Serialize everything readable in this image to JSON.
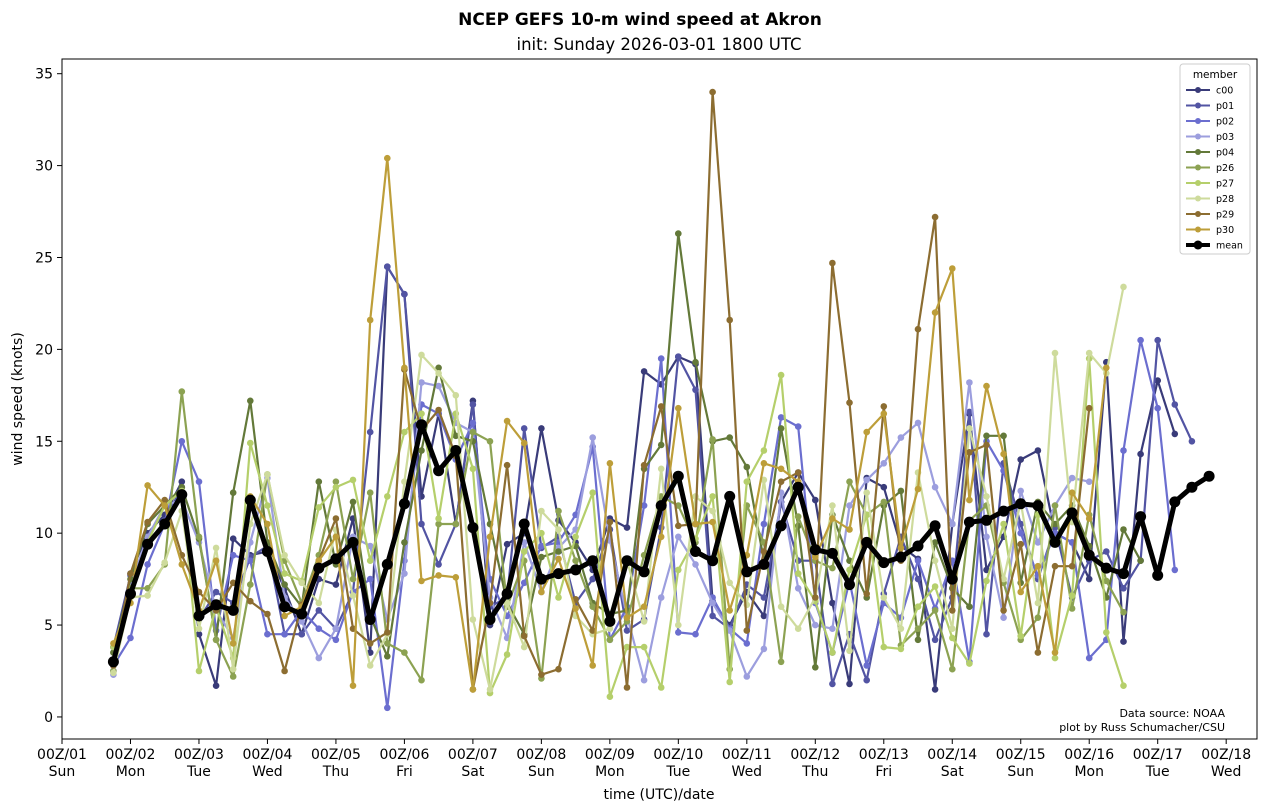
{
  "chart_data": {
    "type": "line",
    "title": "NCEP GEFS 10-m wind speed at Akron",
    "subtitle": "init: Sunday 2026-03-01 1800 UTC",
    "xlabel": "time (UTC)/date",
    "ylabel": "wind speed (knots)",
    "ylim": [
      -1.2,
      35.8
    ],
    "yticks": [
      0,
      5,
      10,
      15,
      20,
      25,
      30,
      35
    ],
    "xlim": [
      0,
      17.45
    ],
    "xtick_labels": [
      {
        "date": "00Z/01",
        "day": "Sun"
      },
      {
        "date": "00Z/02",
        "day": "Mon"
      },
      {
        "date": "00Z/03",
        "day": "Tue"
      },
      {
        "date": "00Z/04",
        "day": "Wed"
      },
      {
        "date": "00Z/05",
        "day": "Thu"
      },
      {
        "date": "00Z/06",
        "day": "Fri"
      },
      {
        "date": "00Z/07",
        "day": "Sat"
      },
      {
        "date": "00Z/08",
        "day": "Sun"
      },
      {
        "date": "00Z/09",
        "day": "Mon"
      },
      {
        "date": "00Z/10",
        "day": "Tue"
      },
      {
        "date": "00Z/11",
        "day": "Wed"
      },
      {
        "date": "00Z/12",
        "day": "Thu"
      },
      {
        "date": "00Z/13",
        "day": "Fri"
      },
      {
        "date": "00Z/14",
        "day": "Sat"
      },
      {
        "date": "00Z/15",
        "day": "Sun"
      },
      {
        "date": "00Z/16",
        "day": "Mon"
      },
      {
        "date": "00Z/17",
        "day": "Tue"
      },
      {
        "date": "00Z/18",
        "day": "Wed"
      }
    ],
    "x_start_days": 0.75,
    "x_step_days": 0.25,
    "legend_title": "member",
    "legend_position": "top-right",
    "grid": false,
    "annotation": [
      "Data source: NOAA",
      "plot by Russ Schumacher/CSU"
    ],
    "series": [
      {
        "name": "c00",
        "color": "#393b79",
        "values": [
          2.5,
          7.8,
          10,
          11,
          12.8,
          4.5,
          1.7,
          9.7,
          8.8,
          9,
          7,
          4.5,
          7.5,
          7.2,
          10.8,
          3.5,
          24.5,
          23,
          12,
          16.5,
          10.5,
          17.2,
          5,
          9.4,
          10,
          15.7,
          10.7,
          9.5,
          8,
          10.8,
          10.3,
          18.8,
          18.1,
          19.6,
          19.2,
          6.3,
          5,
          6.8,
          5.5,
          11.7,
          13.3,
          11.8,
          6.2,
          1.8,
          13,
          12.5,
          9.3,
          8.6,
          1.5,
          10.5,
          16.5,
          8,
          9.8,
          14,
          14.5,
          10,
          9.5,
          7.5,
          19.3,
          4.1,
          14.3,
          18.3,
          15.4
        ]
      },
      {
        "name": "p01",
        "color": "#5254a3",
        "values": [
          3.8,
          7.7,
          9.3,
          10.7,
          12.5,
          5.3,
          6.8,
          6.2,
          8.7,
          9.3,
          4.5,
          4.5,
          5.8,
          4.8,
          6.8,
          15.5,
          24.5,
          23,
          10.5,
          8.3,
          10.5,
          17,
          6,
          6.5,
          15.7,
          9.2,
          9.8,
          6.2,
          7.5,
          10.2,
          4.7,
          5.3,
          10.3,
          19.6,
          17.8,
          5.5,
          4.8,
          7.2,
          6.5,
          11.7,
          8.5,
          8.5,
          1.8,
          4.5,
          2,
          6.7,
          9.8,
          7.5,
          4.2,
          6.5,
          16.6,
          4.5,
          13.8,
          10.5,
          7.5,
          10.3,
          6.5,
          8.5,
          9,
          7,
          8.5,
          20.5,
          17,
          15
        ]
      },
      {
        "name": "p02",
        "color": "#6b6ecf",
        "values": [
          2.8,
          4.3,
          8.3,
          10.5,
          15,
          12.8,
          4.7,
          8.8,
          8.5,
          4.5,
          4.5,
          5.8,
          4.8,
          4.2,
          6.8,
          7.5,
          0.5,
          8.5,
          17,
          16.5,
          14,
          16,
          7.5,
          5.5,
          7.3,
          9.3,
          9.5,
          11,
          14.7,
          4.2,
          6,
          11.5,
          19.5,
          4.6,
          4.5,
          6.5,
          4.8,
          4,
          10.5,
          16.3,
          15.8,
          6.2,
          3.5,
          7.4,
          2.8,
          6.2,
          5.4,
          8.5,
          5.9,
          8.5,
          3,
          15,
          13.4,
          10,
          7.7,
          10,
          9.5,
          3.2,
          4.2,
          14.5,
          20.5,
          16.8,
          8
        ]
      },
      {
        "name": "p03",
        "color": "#9c9ede",
        "values": [
          2.3,
          7.2,
          9.8,
          11.5,
          11.8,
          9.5,
          5.8,
          4.3,
          9.5,
          13,
          6.5,
          5.2,
          3.2,
          4.8,
          9.8,
          9.3,
          5.3,
          7.8,
          18.2,
          18,
          16,
          15.5,
          6.5,
          4.3,
          9.5,
          6.8,
          9.2,
          10.2,
          15.2,
          9.6,
          5.5,
          2,
          6.5,
          9.8,
          8.3,
          6.2,
          4.7,
          2.2,
          3.7,
          12.2,
          7,
          5,
          4.8,
          11.5,
          12.9,
          13.8,
          15.2,
          16,
          12.5,
          10.5,
          18.2,
          9.8,
          5.4,
          12.3,
          9.5,
          11.5,
          13,
          12.8
        ]
      },
      {
        "name": "p04",
        "color": "#637939",
        "values": [
          3.5,
          7.5,
          10.5,
          11.5,
          12.5,
          9.7,
          4.2,
          12.2,
          17.2,
          9.5,
          7.2,
          6,
          12.8,
          8.3,
          11.7,
          5.5,
          3.3,
          9.5,
          14.5,
          19,
          15.3,
          15,
          10.5,
          6.2,
          4.5,
          8.7,
          9,
          9.3,
          6.2,
          5.6,
          5.8,
          13.5,
          14.8,
          26.3,
          19.3,
          15,
          15.2,
          13.6,
          8.5,
          15.7,
          10.4,
          2.7,
          11,
          8.5,
          6.5,
          11.5,
          12.3,
          4.2,
          9.5,
          7,
          6,
          15.3,
          15.3,
          7.3,
          11.7,
          10.5,
          11.5,
          9.3,
          6.5,
          10.2,
          8.5
        ]
      },
      {
        "name": "p26",
        "color": "#8ca252",
        "values": [
          2.5,
          7,
          7,
          8.3,
          17.7,
          9.8,
          4.2,
          2.2,
          7.2,
          13.2,
          8.5,
          6.2,
          8.8,
          12.8,
          7.5,
          12.2,
          4,
          3.5,
          2,
          10.5,
          10.5,
          15.5,
          15,
          6,
          8.5,
          2.1,
          11.2,
          8.5,
          6,
          4.2,
          5.2,
          8.8,
          12,
          11.5,
          9.5,
          15.1,
          2.6,
          11.5,
          9.5,
          3,
          10.9,
          8.5,
          8.1,
          12.8,
          11,
          11.7,
          3.9,
          4.8,
          5.8,
          2.6,
          10.7,
          11.5,
          7.3,
          4.2,
          5.4,
          11.5,
          5.9,
          11,
          7.4,
          5.7
        ]
      },
      {
        "name": "p27",
        "color": "#b5cf6b",
        "values": [
          3.8,
          6.7,
          9.5,
          11.5,
          12.3,
          2.5,
          6,
          3.2,
          14.9,
          11.5,
          7.8,
          7.4,
          11.4,
          12.5,
          12.9,
          8.5,
          12,
          15.5,
          16.5,
          10.8,
          16.5,
          13.5,
          1.3,
          3.4,
          9,
          10,
          6.5,
          9.8,
          12.2,
          1.1,
          3.8,
          3.8,
          1.6,
          8,
          9.7,
          12,
          1.9,
          12.8,
          14.5,
          18.6,
          7.8,
          6.3,
          3.5,
          8,
          11,
          3.8,
          3.7,
          6,
          7.1,
          4.3,
          2.9,
          7.4,
          10.5,
          4.4,
          11,
          3.2,
          6.6,
          19.5,
          4.6,
          1.7
        ]
      },
      {
        "name": "p28",
        "color": "#cedb9c",
        "values": [
          2.4,
          6.5,
          6.6,
          8.4,
          11.2,
          4.8,
          9.2,
          2.6,
          10.5,
          13.2,
          8.8,
          7.3,
          6.2,
          10.2,
          6.6,
          2.8,
          4.5,
          12.8,
          19.7,
          18.7,
          17.5,
          5.3,
          1.5,
          6.2,
          3.8,
          11.2,
          10.2,
          5.5,
          4.5,
          4.8,
          8.5,
          5.2,
          13.5,
          5,
          12,
          11.2,
          7.3,
          6.1,
          12.9,
          6,
          4.8,
          6.5,
          11.5,
          3.6,
          12.2,
          6.5,
          4.8,
          13.3,
          8.5,
          4.8,
          15.7,
          12,
          7.5,
          11.7,
          6.2,
          19.8,
          10.6,
          19.8,
          18.7,
          23.4
        ]
      },
      {
        "name": "p29",
        "color": "#8c6d31",
        "values": [
          2.8,
          7.8,
          10.6,
          11.8,
          8.8,
          6.8,
          5.8,
          7.3,
          6.3,
          5.6,
          2.5,
          6.1,
          8.5,
          10.8,
          4.8,
          4,
          4.6,
          18.9,
          15.6,
          16.7,
          14.2,
          1.5,
          6.2,
          13.7,
          4.4,
          2.3,
          2.6,
          6.4,
          4.7,
          10.6,
          1.6,
          13.7,
          16.9,
          10.4,
          10.5,
          34,
          21.6,
          4.7,
          9,
          12.8,
          13.3,
          6.5,
          24.7,
          17.1,
          6.7,
          16.9,
          8.5,
          21.1,
          27.2,
          5.8,
          14.4,
          14.8,
          5.8,
          9.4,
          3.5,
          8.2,
          8.2,
          16.8
        ]
      },
      {
        "name": "p30",
        "color": "#bd9e39",
        "values": [
          4,
          6.2,
          12.6,
          11.5,
          8.3,
          5.8,
          8.5,
          4,
          12,
          10.5,
          5.5,
          6,
          8.5,
          9.8,
          1.7,
          21.6,
          30.4,
          19,
          7.4,
          7.7,
          7.6,
          1.5,
          9.8,
          16.1,
          14.9,
          6.8,
          8.6,
          5.9,
          2.8,
          13.8,
          5.4,
          6,
          9.8,
          16.8,
          10.5,
          10.6,
          5.8,
          8.8,
          13.8,
          13.5,
          12.8,
          8.7,
          10.8,
          10.2,
          15.5,
          16.5,
          9.2,
          12.4,
          22,
          24.4,
          11.8,
          18,
          14.3,
          6.8,
          8.2,
          3.5,
          12.2,
          10.8,
          19
        ]
      },
      {
        "name": "mean",
        "color": "#000000",
        "values": [
          3,
          6.7,
          9.4,
          10.5,
          12.1,
          5.5,
          6.1,
          5.8,
          11.8,
          9,
          6,
          5.6,
          8.1,
          8.6,
          9.5,
          5.3,
          8.3,
          11.6,
          15.9,
          13.4,
          14.5,
          10.3,
          5.3,
          6.7,
          10.5,
          7.5,
          7.8,
          8,
          8.5,
          5.2,
          8.5,
          7.9,
          11.5,
          13.1,
          9,
          8.5,
          12,
          7.9,
          8.3,
          10.4,
          12.5,
          9.1,
          8.9,
          7.2,
          9.5,
          8.4,
          8.7,
          9.3,
          10.4,
          7.5,
          10.6,
          10.7,
          11.2,
          11.6,
          11.5,
          9.5,
          11.1,
          8.8,
          8.1,
          7.8,
          10.9,
          7.7,
          11.7,
          12.5,
          13.1
        ]
      }
    ]
  }
}
